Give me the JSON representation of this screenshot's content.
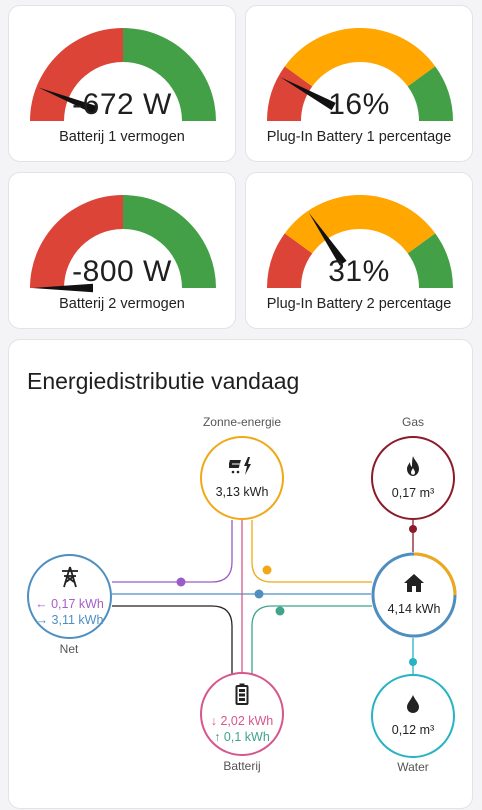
{
  "gauges": [
    {
      "value": "-672 W",
      "label": "Batterij 1 vermogen",
      "fraction": 0.12,
      "segments": [
        {
          "from": 0,
          "to": 0.5,
          "color": "#db4437"
        },
        {
          "from": 0.5,
          "to": 1,
          "color": "#43a047"
        }
      ]
    },
    {
      "value": "16%",
      "label": "Plug-In Battery 1 percentage",
      "fraction": 0.16,
      "segments": [
        {
          "from": 0,
          "to": 0.2,
          "color": "#db4437"
        },
        {
          "from": 0.2,
          "to": 0.8,
          "color": "#ffa600"
        },
        {
          "from": 0.8,
          "to": 1,
          "color": "#43a047"
        }
      ]
    },
    {
      "value": "-800 W",
      "label": "Batterij 2 vermogen",
      "fraction": 0.0,
      "segments": [
        {
          "from": 0,
          "to": 0.5,
          "color": "#db4437"
        },
        {
          "from": 0.5,
          "to": 1,
          "color": "#43a047"
        }
      ]
    },
    {
      "value": "31%",
      "label": "Plug-In Battery 2 percentage",
      "fraction": 0.31,
      "segments": [
        {
          "from": 0,
          "to": 0.2,
          "color": "#db4437"
        },
        {
          "from": 0.2,
          "to": 0.8,
          "color": "#ffa600"
        },
        {
          "from": 0.8,
          "to": 1,
          "color": "#43a047"
        }
      ]
    }
  ],
  "energy": {
    "title": "Energiedistributie vandaag",
    "solar": {
      "label": "Zonne-energie",
      "value": "3,13 kWh",
      "color": "#f0a818",
      "icon": "solar-power-icon"
    },
    "gas": {
      "label": "Gas",
      "value": "0,17 m³",
      "color": "#8b1a2a",
      "icon": "fire-icon"
    },
    "grid": {
      "label": "Net",
      "import": "← 0,17 kWh",
      "export": "→ 3,11 kWh",
      "color": "#4f8fc0",
      "icon": "transmission-tower-icon"
    },
    "home": {
      "value": "4,14 kWh",
      "color": "#4f8fc0",
      "icon": "home-icon"
    },
    "battery": {
      "label": "Batterij",
      "discharge": "↓ 2,02 kWh",
      "charge": "↑ 0,1 kWh",
      "color": "#d6578d",
      "icon": "battery-icon"
    },
    "water": {
      "label": "Water",
      "value": "0,12 m³",
      "color": "#27b3c4",
      "icon": "water-drop-icon"
    }
  }
}
